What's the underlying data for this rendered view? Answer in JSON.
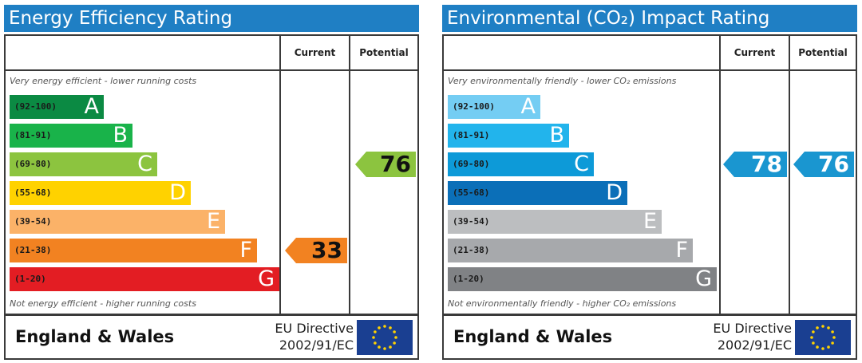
{
  "chart_data": [
    {
      "type": "bar",
      "title": "Energy Efficiency Rating",
      "column_headers": [
        "Current",
        "Potential"
      ],
      "top_note": "Very energy efficient - lower running costs",
      "bottom_note": "Not energy efficient - higher running costs",
      "bands": [
        {
          "range": "(92-100)",
          "letter": "A",
          "color": "#0b8a43",
          "value": 1
        },
        {
          "range": "(81-91)",
          "letter": "B",
          "color": "#19b34a",
          "value": 2
        },
        {
          "range": "(69-80)",
          "letter": "C",
          "color": "#8cc43f",
          "value": 3
        },
        {
          "range": "(55-68)",
          "letter": "D",
          "color": "#ffd200",
          "value": 4
        },
        {
          "range": "(39-54)",
          "letter": "E",
          "color": "#fbb268",
          "value": 5
        },
        {
          "range": "(21-38)",
          "letter": "F",
          "color": "#f28221",
          "value": 6
        },
        {
          "range": "(1-20)",
          "letter": "G",
          "color": "#e31d23",
          "value": 7
        }
      ],
      "current": {
        "value": "33",
        "band": "F",
        "color": "#f28221",
        "text_color": "#111111"
      },
      "potential": {
        "value": "76",
        "band": "C",
        "color": "#8cc43f",
        "text_color": "#111111"
      },
      "footer": {
        "region": "England & Wales",
        "directive_line1": "EU Directive",
        "directive_line2": "2002/91/EC"
      }
    },
    {
      "type": "bar",
      "title": "Environmental (CO₂) Impact Rating",
      "column_headers": [
        "Current",
        "Potential"
      ],
      "top_note": "Very environmentally friendly - lower CO₂ emissions",
      "bottom_note": "Not environmentally friendly - higher CO₂ emissions",
      "bands": [
        {
          "range": "(92-100)",
          "letter": "A",
          "color": "#74cdf3",
          "value": 1
        },
        {
          "range": "(81-91)",
          "letter": "B",
          "color": "#22b4ec",
          "value": 2
        },
        {
          "range": "(69-80)",
          "letter": "C",
          "color": "#0d9ad8",
          "value": 3
        },
        {
          "range": "(55-68)",
          "letter": "D",
          "color": "#0b6fb8",
          "value": 4
        },
        {
          "range": "(39-54)",
          "letter": "E",
          "color": "#bcbec0",
          "value": 5
        },
        {
          "range": "(21-38)",
          "letter": "F",
          "color": "#a7a9ac",
          "value": 6
        },
        {
          "range": "(1-20)",
          "letter": "G",
          "color": "#808285",
          "value": 7
        }
      ],
      "current": {
        "value": "78",
        "band": "C",
        "color": "#1a96d0",
        "text_color": "#ffffff"
      },
      "potential": {
        "value": "76",
        "band": "C",
        "color": "#1a96d0",
        "text_color": "#ffffff"
      },
      "footer": {
        "region": "England & Wales",
        "directive_line1": "EU Directive",
        "directive_line2": "2002/91/EC"
      }
    }
  ]
}
